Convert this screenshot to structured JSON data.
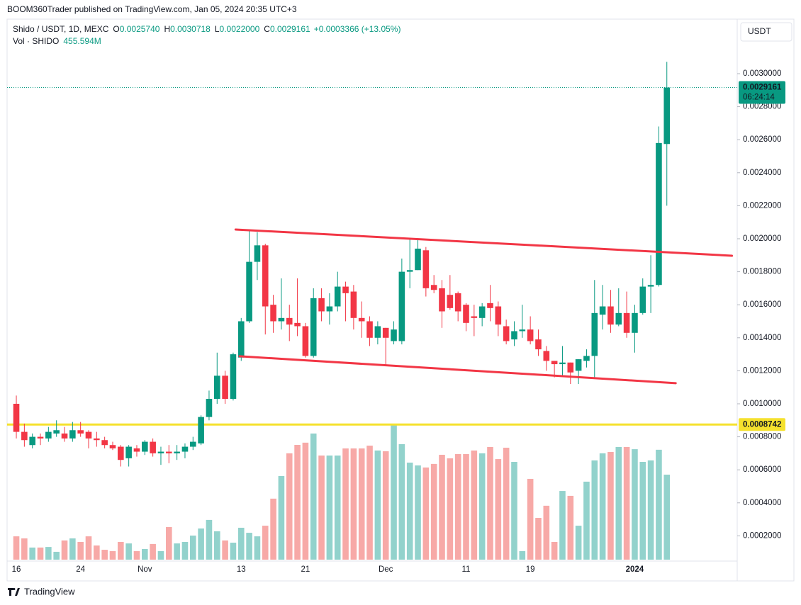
{
  "publisher": "BOOM360Trader published on TradingView.com, Jan 05, 2024 20:35 UTC+3",
  "brand": "TradingView",
  "currency_button": "USDT",
  "chart_data": {
    "type": "candlestick",
    "title": "Shido / USDT, 1D, MEXC",
    "legend": [
      {
        "label": "O",
        "value": "0.0025740"
      },
      {
        "label": "H",
        "value": "0.0030718"
      },
      {
        "label": "L",
        "value": "0.0022000"
      },
      {
        "label": "C",
        "value": "0.0029161"
      }
    ],
    "change": "+0.0003366 (+13.05%)",
    "volume_title": "Vol · SHIDO",
    "volume_label": "455.594M",
    "categories": [
      "16",
      null,
      null,
      null,
      null,
      null,
      null,
      null,
      "24",
      null,
      null,
      null,
      null,
      null,
      null,
      null,
      "Nov",
      null,
      null,
      null,
      null,
      null,
      null,
      null,
      null,
      null,
      null,
      null,
      "13",
      null,
      null,
      null,
      null,
      null,
      null,
      null,
      "21",
      null,
      null,
      null,
      null,
      null,
      null,
      null,
      null,
      null,
      "Dec",
      null,
      null,
      null,
      null,
      null,
      null,
      null,
      null,
      null,
      "11",
      null,
      null,
      null,
      null,
      null,
      null,
      null,
      "19",
      null,
      null,
      null,
      null,
      null,
      null,
      null,
      null,
      null,
      null,
      null,
      null,
      "2024",
      null,
      null,
      null,
      null
    ],
    "open": [
      0.001,
      0.00083,
      0.00075,
      0.0008,
      0.00079,
      0.00082,
      0.00082,
      0.00079,
      0.00084,
      0.00083,
      0.00079,
      0.00078,
      0.00075,
      0.00074,
      0.00067,
      0.00073,
      0.00071,
      0.00077,
      0.0007,
      0.00071,
      0.0007,
      0.00071,
      0.00074,
      0.00076,
      0.00092,
      0.00103,
      0.00117,
      0.00103,
      0.00128,
      0.0015,
      0.00186,
      0.00196,
      0.0016,
      0.0015,
      0.00152,
      0.00149,
      0.00147,
      0.00129,
      0.00164,
      0.00156,
      0.00159,
      0.00171,
      0.00168,
      0.00152,
      0.0015,
      0.0014,
      0.00146,
      0.00138,
      0.00138,
      0.0018,
      0.00181,
      0.00193,
      0.00172,
      0.0017,
      0.00166,
      0.00167,
      0.0016,
      0.00153,
      0.00152,
      0.00161,
      0.00159,
      0.00147,
      0.00139,
      0.00144,
      0.00145,
      0.00139,
      0.00132,
      0.00126,
      0.00124,
      0.00125,
      0.0012,
      0.00126,
      0.00129,
      0.00154,
      0.00159,
      0.00148,
      0.00155,
      0.00143,
      0.00155,
      0.00171,
      0.00172,
      0.002574
    ],
    "high": [
      0.00105,
      0.00088,
      0.00082,
      0.00082,
      0.00086,
      0.0009,
      0.00086,
      0.00089,
      0.00089,
      0.00084,
      0.00083,
      0.0008,
      0.00077,
      0.00075,
      0.00075,
      0.00075,
      0.00078,
      0.00079,
      0.00074,
      0.00075,
      0.00075,
      0.00076,
      0.0008,
      0.00093,
      0.00108,
      0.00131,
      0.0012,
      0.00131,
      0.00152,
      0.00205,
      0.00204,
      0.00197,
      0.00166,
      0.00176,
      0.0016,
      0.00176,
      0.00149,
      0.0017,
      0.0017,
      0.00167,
      0.0018,
      0.00174,
      0.00172,
      0.00162,
      0.00153,
      0.0015,
      0.00146,
      0.0015,
      0.00188,
      0.002,
      0.002,
      0.00195,
      0.00178,
      0.00175,
      0.00178,
      0.00168,
      0.00161,
      0.0016,
      0.00161,
      0.00172,
      0.00162,
      0.00151,
      0.0015,
      0.0016,
      0.00153,
      0.00145,
      0.00135,
      0.00126,
      0.00135,
      0.00125,
      0.00127,
      0.00133,
      0.00175,
      0.00172,
      0.00169,
      0.0017,
      0.00168,
      0.0016,
      0.00176,
      0.0019,
      0.00268,
      0.0030718
    ],
    "low": [
      0.00079,
      0.00074,
      0.00073,
      0.00075,
      0.00077,
      0.0008,
      0.00077,
      0.00077,
      0.0008,
      0.00073,
      0.00074,
      0.00073,
      0.00072,
      0.00062,
      0.00062,
      0.00068,
      0.00069,
      0.00068,
      0.00063,
      0.00064,
      0.00066,
      0.00067,
      0.00072,
      0.00075,
      0.0009,
      0.001,
      0.001,
      0.00102,
      0.00126,
      0.00149,
      0.00175,
      0.00142,
      0.00143,
      0.00145,
      0.00138,
      0.00141,
      0.00128,
      0.00128,
      0.0015,
      0.00148,
      0.00156,
      0.0015,
      0.00145,
      0.0014,
      0.00135,
      0.00136,
      0.00123,
      0.00136,
      0.00136,
      0.0017,
      0.00181,
      0.00165,
      0.00167,
      0.00146,
      0.00157,
      0.0015,
      0.00144,
      0.00141,
      0.00147,
      0.0015,
      0.00141,
      0.00136,
      0.00135,
      0.0014,
      0.00136,
      0.00129,
      0.0012,
      0.00116,
      0.00117,
      0.00112,
      0.00112,
      0.00122,
      0.00115,
      0.00145,
      0.00143,
      0.00147,
      0.0014,
      0.00131,
      0.00154,
      0.00155,
      0.00171,
      0.0022
    ],
    "close": [
      0.00083,
      0.00078,
      0.0008,
      0.00079,
      0.00083,
      0.00084,
      0.00079,
      0.00084,
      0.00082,
      0.00079,
      0.00078,
      0.00075,
      0.00073,
      0.00066,
      0.00074,
      0.00071,
      0.00077,
      0.0007,
      0.00071,
      0.0007,
      0.00071,
      0.00074,
      0.00077,
      0.00092,
      0.00103,
      0.00117,
      0.00103,
      0.0013,
      0.0015,
      0.00186,
      0.00196,
      0.00159,
      0.0015,
      0.00152,
      0.00148,
      0.00147,
      0.00129,
      0.00164,
      0.00156,
      0.00159,
      0.00171,
      0.00167,
      0.00152,
      0.0015,
      0.0014,
      0.00147,
      0.0014,
      0.00145,
      0.0018,
      0.00181,
      0.00194,
      0.0017,
      0.00169,
      0.00156,
      0.00158,
      0.00156,
      0.00149,
      0.00152,
      0.00159,
      0.00158,
      0.00148,
      0.00138,
      0.00144,
      0.00145,
      0.00138,
      0.00133,
      0.00126,
      0.00124,
      0.00125,
      0.00119,
      0.00127,
      0.00129,
      0.00155,
      0.00159,
      0.00148,
      0.00155,
      0.00143,
      0.00155,
      0.00171,
      0.00172,
      0.00258,
      0.0029161
    ],
    "volume": [
      125,
      114,
      65,
      65,
      68,
      42,
      103,
      114,
      95,
      125,
      76,
      53,
      46,
      95,
      87,
      46,
      57,
      84,
      46,
      175,
      87,
      95,
      129,
      167,
      213,
      152,
      103,
      91,
      171,
      144,
      125,
      182,
      327,
      448,
      570,
      615,
      627,
      676,
      558,
      558,
      558,
      596,
      596,
      596,
      611,
      585,
      581,
      725,
      619,
      520,
      505,
      494,
      513,
      562,
      543,
      566,
      566,
      585,
      570,
      604,
      539,
      600,
      524,
      46,
      433,
      224,
      289,
      95,
      368,
      342,
      182,
      418,
      532,
      570,
      577,
      604,
      604,
      592,
      524,
      532,
      589,
      455.594
    ],
    "xlim": [
      -1.15,
      89.76
    ],
    "ylim": [
      5.57e-05,
      0.0033262
    ],
    "volume_lim": [
      0,
      2893
    ],
    "yticks": [
      {
        "value": 0.0002,
        "label": "0.0002000"
      },
      {
        "value": 0.0004,
        "label": "0.0004000"
      },
      {
        "value": 0.0006,
        "label": "0.0006000"
      },
      {
        "value": 0.0008,
        "label": "0.0008000"
      },
      {
        "value": 0.001,
        "label": "0.0010000"
      },
      {
        "value": 0.0012,
        "label": "0.0012000"
      },
      {
        "value": 0.0014,
        "label": "0.0014000"
      },
      {
        "value": 0.0016,
        "label": "0.0016000"
      },
      {
        "value": 0.0018,
        "label": "0.0018000"
      },
      {
        "value": 0.002,
        "label": "0.0020000"
      },
      {
        "value": 0.0022,
        "label": "0.0022000"
      },
      {
        "value": 0.0024,
        "label": "0.0024000"
      },
      {
        "value": 0.0026,
        "label": "0.0026000"
      },
      {
        "value": 0.0028,
        "label": "0.0028000"
      },
      {
        "value": 0.003,
        "label": "0.0030000"
      }
    ],
    "up_color": "#089981",
    "down_color": "#f23645",
    "volume_up_color": "#92d2cc",
    "volume_down_color": "#f7a9a7",
    "trendlines": [
      {
        "x": [
          27.3,
          89.1
        ],
        "y": [
          0.002056,
          0.001897
        ],
        "color": "#f23645"
      },
      {
        "x": [
          27.8,
          82.1
        ],
        "y": [
          0.001288,
          0.001125
        ],
        "color": "#f23645"
      }
    ],
    "hline": {
      "value": 0.0008742,
      "label": "0.0008742",
      "color": "#f5e12d"
    },
    "last_price": {
      "value": 0.0029161,
      "label": "0.0029161",
      "countdown": "06:24:14",
      "color": "#089981"
    }
  }
}
